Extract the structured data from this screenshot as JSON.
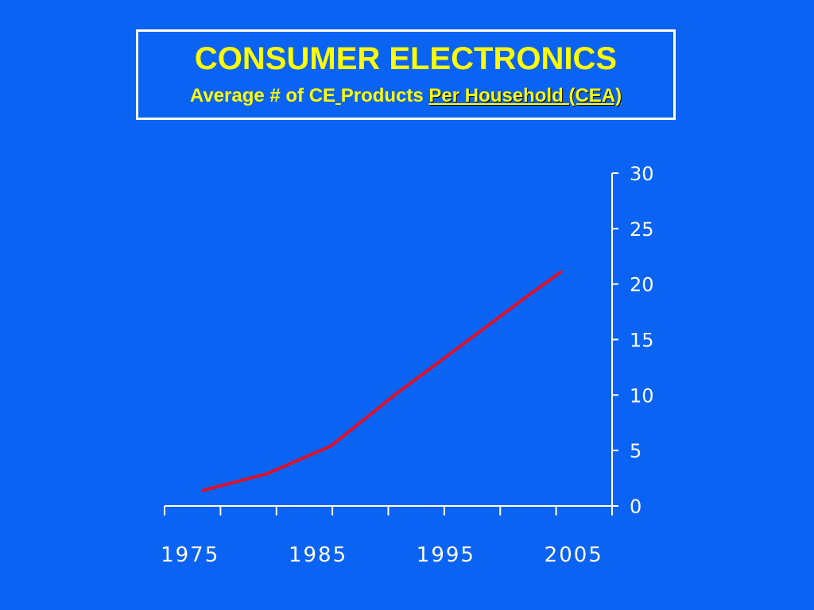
{
  "colors": {
    "background": "#0a63f2",
    "title": "#ffff00",
    "axis": "#ffffff",
    "line": "#e0102a"
  },
  "title_box": {
    "title": "CONSUMER ELECTRONICS",
    "subtitle_part1": "Average # of CE",
    "subtitle_gap": " ",
    "subtitle_part2": "Products ",
    "subtitle_source": "Per Household (CEA)"
  },
  "chart_data": {
    "type": "line",
    "title": "CONSUMER ELECTRONICS",
    "subtitle": "Average # of CE Products Per Household (CEA)",
    "xlabel": "",
    "ylabel": "",
    "x": [
      1976,
      1981,
      1986,
      1991,
      1996,
      2001,
      2004
    ],
    "series": [
      {
        "values": [
          1.4,
          2.9,
          5.4,
          10.0,
          14.3,
          18.6,
          21.1
        ]
      }
    ],
    "xlim": [
      1973,
      2008
    ],
    "ylim": [
      0,
      30
    ],
    "xticks_labeled": [
      1975,
      1985,
      1995,
      2005
    ],
    "yticks": [
      0,
      5,
      10,
      15,
      20,
      25,
      30
    ],
    "y_axis_side": "right",
    "grid": false,
    "legend": "none"
  }
}
